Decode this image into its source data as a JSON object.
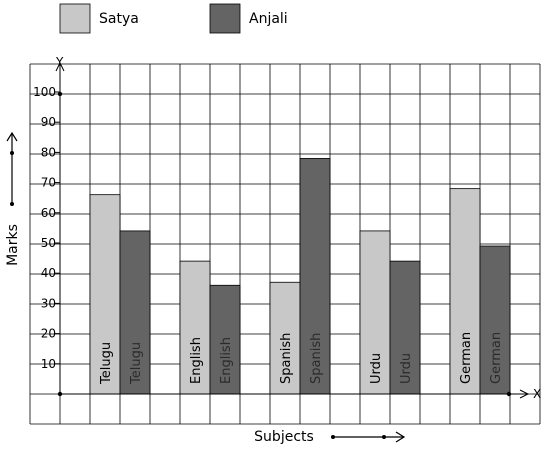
{
  "chart_data": {
    "type": "bar",
    "categories": [
      "Telugu",
      "English",
      "Spanish",
      "Urdu",
      "German"
    ],
    "series": [
      {
        "name": "Satya",
        "values": [
          66,
          44,
          37,
          54,
          68
        ],
        "color": "#c8c8c8"
      },
      {
        "name": "Anjali",
        "values": [
          54,
          36,
          78,
          44,
          49
        ],
        "color": "#646464"
      }
    ],
    "xlabel": "Subjects",
    "ylabel": "Marks",
    "x_axis_letter": "X",
    "y_axis_letter": "Y",
    "ylim": [
      0,
      100
    ],
    "yticks": [
      10,
      20,
      30,
      40,
      50,
      60,
      70,
      80,
      90,
      100
    ],
    "grid": true,
    "legend_position": "top-left"
  }
}
